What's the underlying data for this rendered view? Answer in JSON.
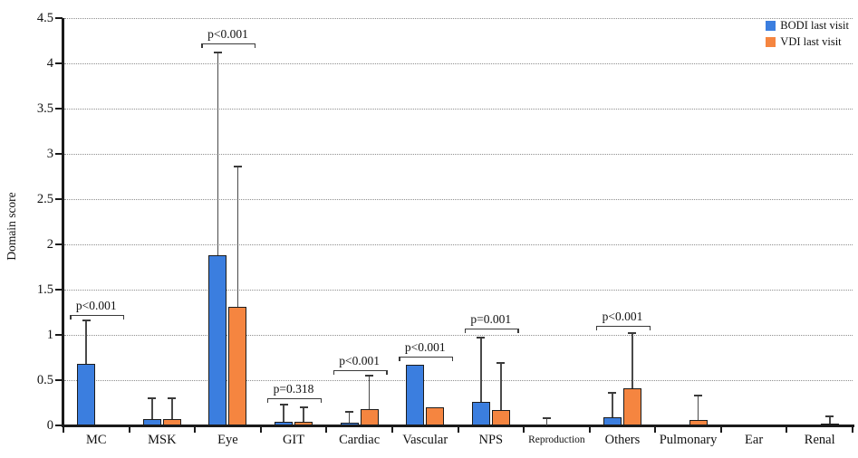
{
  "chart_data": {
    "type": "bar",
    "title": "",
    "xlabel": "",
    "ylabel": "Domain score",
    "ylim": [
      0,
      4.5
    ],
    "yticks": [
      0,
      0.5,
      1,
      1.5,
      2,
      2.5,
      3,
      3.5,
      4,
      4.5
    ],
    "grid": "horizontal-dotted",
    "legend_position": "top-right",
    "categories": [
      "MC",
      "MSK",
      "Eye",
      "GIT",
      "Cardiac",
      "Vascular",
      "NPS",
      "Reproduction",
      "Others",
      "Pulmonary",
      "Ear",
      "Renal"
    ],
    "series": [
      {
        "name": "BODI last visit",
        "color": "#3B7EDF",
        "values": [
          0.68,
          0.07,
          1.88,
          0.04,
          0.03,
          0.67,
          0.26,
          0.0,
          0.09,
          0.0,
          0.0,
          0.0
        ],
        "whisker_top": [
          1.16,
          0.3,
          4.12,
          0.23,
          0.15,
          0.67,
          0.97,
          0.08,
          0.36,
          0.0,
          0.0,
          0.0
        ]
      },
      {
        "name": "VDI last visit",
        "color": "#F58540",
        "values": [
          0.0,
          0.07,
          1.31,
          0.04,
          0.18,
          0.2,
          0.17,
          0.0,
          0.41,
          0.06,
          0.0,
          0.02
        ],
        "whisker_top": [
          0.0,
          0.3,
          2.86,
          0.2,
          0.55,
          0.2,
          0.69,
          0.0,
          1.02,
          0.33,
          0.0,
          0.1
        ]
      }
    ],
    "annotations": [
      {
        "category": "MC",
        "label": "p<0.001",
        "bracket_y": 1.22
      },
      {
        "category": "Eye",
        "label": "p<0.001",
        "bracket_y": 4.22
      },
      {
        "category": "GIT",
        "label": "p=0.318",
        "bracket_y": 0.3
      },
      {
        "category": "Cardiac",
        "label": "p<0.001",
        "bracket_y": 0.61
      },
      {
        "category": "Vascular",
        "label": "p<0.001",
        "bracket_y": 0.76
      },
      {
        "category": "NPS",
        "label": "p=0.001",
        "bracket_y": 1.07
      },
      {
        "category": "Others",
        "label": "p<0.001",
        "bracket_y": 1.1
      }
    ]
  }
}
